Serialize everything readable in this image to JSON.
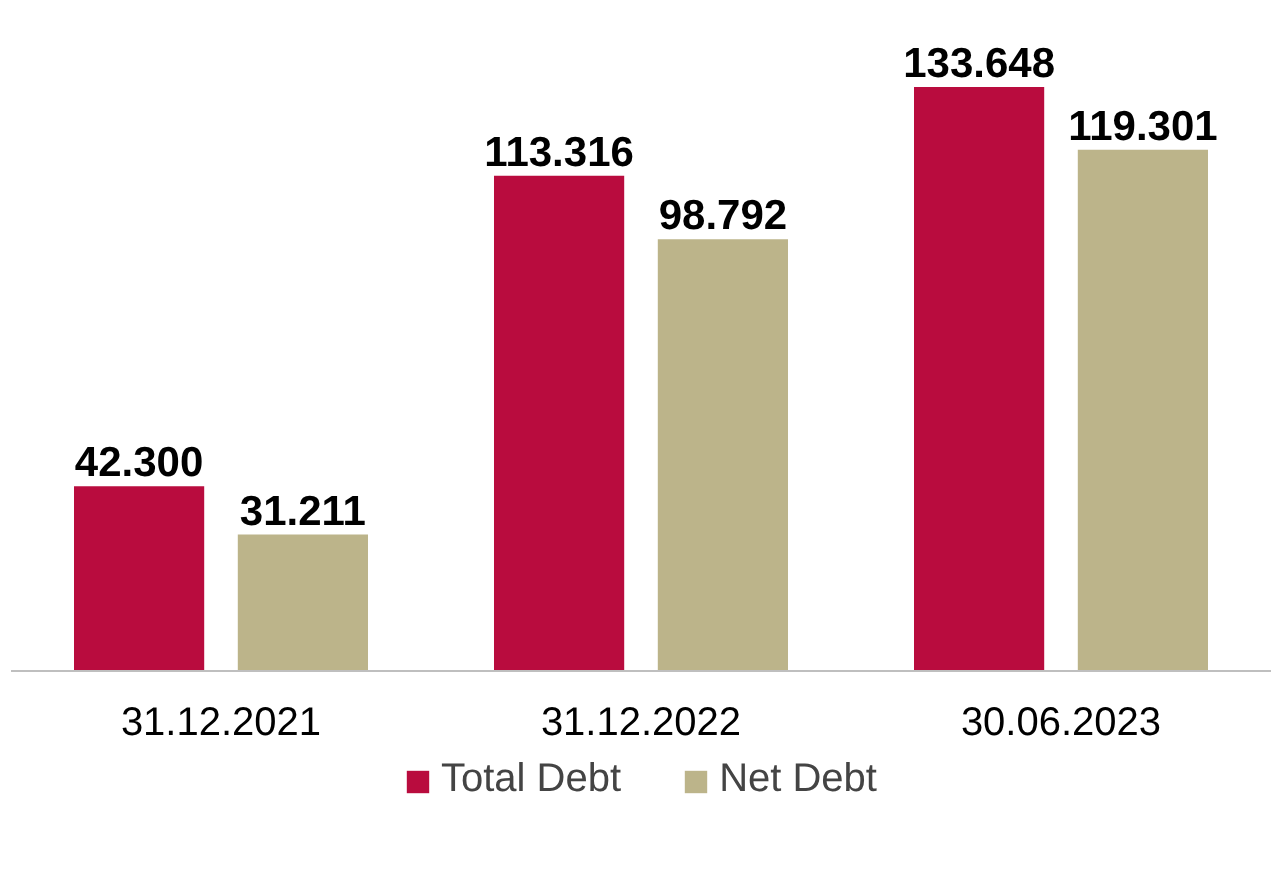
{
  "chart_data": {
    "type": "bar",
    "categories": [
      "31.12.2021",
      "31.12.2022",
      "30.06.2023"
    ],
    "series": [
      {
        "name": "Total Debt",
        "color": "#b90c3e",
        "values": [
          42300,
          113316,
          133648
        ],
        "value_labels": [
          "42.300",
          "113.316",
          "133.648"
        ]
      },
      {
        "name": "Net Debt",
        "color": "#bcb48a",
        "values": [
          31211,
          98792,
          119301
        ],
        "value_labels": [
          "31.211",
          "98.792",
          "119.301"
        ]
      }
    ],
    "legend": "bottom"
  }
}
